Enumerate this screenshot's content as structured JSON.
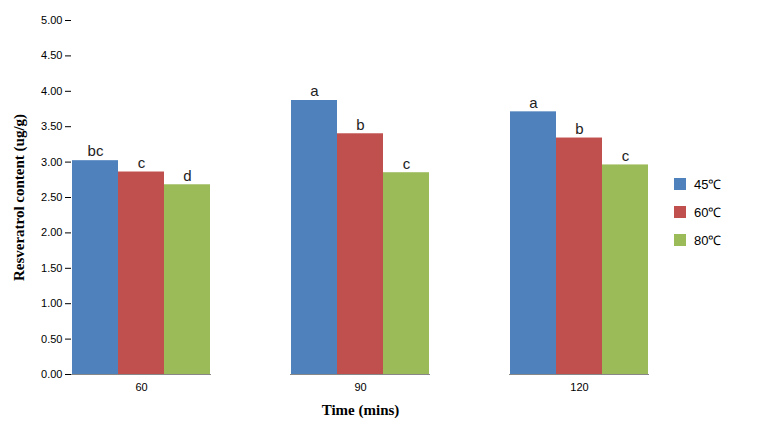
{
  "chart_data": {
    "type": "bar",
    "xlabel": "Time (mins)",
    "ylabel": "Resveratrol content (ug/g)",
    "categories": [
      "60",
      "90",
      "120"
    ],
    "series": [
      {
        "name": "45℃",
        "color": "#4f81bd",
        "values": [
          3.02,
          3.87,
          3.71
        ],
        "significance": [
          "bc",
          "a",
          "a"
        ]
      },
      {
        "name": "60℃",
        "color": "#c0504d",
        "values": [
          2.86,
          3.4,
          3.34
        ],
        "significance": [
          "c",
          "b",
          "b"
        ]
      },
      {
        "name": "80℃",
        "color": "#9bbb59",
        "values": [
          2.68,
          2.85,
          2.96
        ],
        "significance": [
          "d",
          "c",
          "c"
        ]
      }
    ],
    "ylim": [
      0,
      5
    ],
    "yticks": [
      {
        "value": 0,
        "label": "0.00"
      },
      {
        "value": 0.5,
        "label": "0.50"
      },
      {
        "value": 1,
        "label": "1.00"
      },
      {
        "value": 1.5,
        "label": "1.50"
      },
      {
        "value": 2,
        "label": "2.00"
      },
      {
        "value": 2.5,
        "label": "2.50"
      },
      {
        "value": 3,
        "label": "3.00"
      },
      {
        "value": 3.5,
        "label": "3.50"
      },
      {
        "value": 4,
        "label": "4.00"
      },
      {
        "value": 4.5,
        "label": "4.50"
      },
      {
        "value": 5,
        "label": "5.00"
      }
    ],
    "grid": false,
    "legend": "right"
  }
}
